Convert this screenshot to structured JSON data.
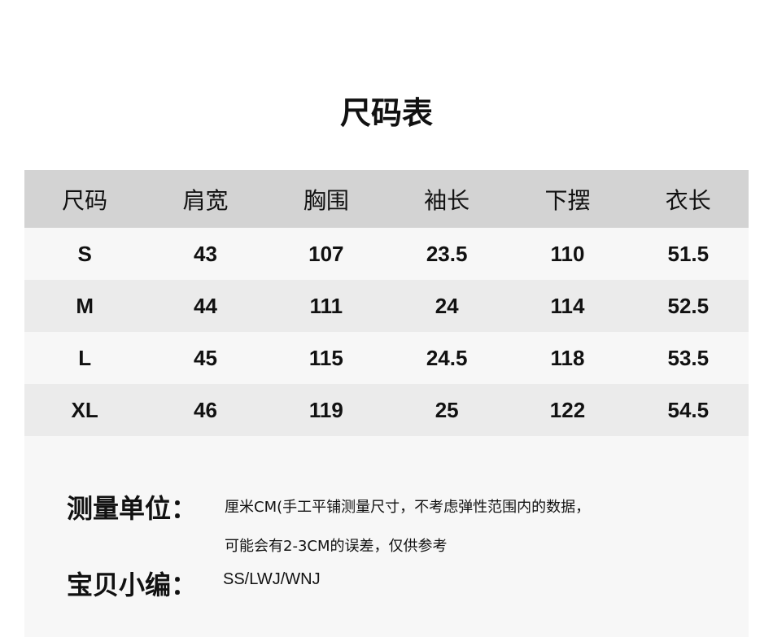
{
  "title": "尺码表",
  "headers": [
    "尺码",
    "肩宽",
    "胸围",
    "袖长",
    "下摆",
    "衣长"
  ],
  "rows": [
    [
      "S",
      "43",
      "107",
      "23.5",
      "110",
      "51.5"
    ],
    [
      "M",
      "44",
      "111",
      "24",
      "114",
      "52.5"
    ],
    [
      "L",
      "45",
      "115",
      "24.5",
      "118",
      "53.5"
    ],
    [
      "XL",
      "46",
      "119",
      "25",
      "122",
      "54.5"
    ]
  ],
  "notes": {
    "unit_label": "测量单位：",
    "unit_line1": "厘米CM(手工平铺测量尺寸，不考虑弹性范围内的数据，",
    "unit_line2": "可能会有2-3CM的误差，仅供参考",
    "editor_label": "宝贝小编：",
    "editor_value": "SS/LWJ/WNJ"
  }
}
